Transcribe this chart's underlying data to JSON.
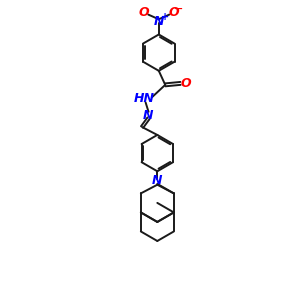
{
  "bg_color": "#ffffff",
  "bond_color": "#1a1a1a",
  "N_color": "#0000ff",
  "O_color": "#ff0000",
  "line_width": 1.4,
  "font_size": 8.5,
  "figsize": [
    3.0,
    3.0
  ],
  "dpi": 100,
  "xlim": [
    0,
    10
  ],
  "ylim": [
    0,
    10
  ]
}
